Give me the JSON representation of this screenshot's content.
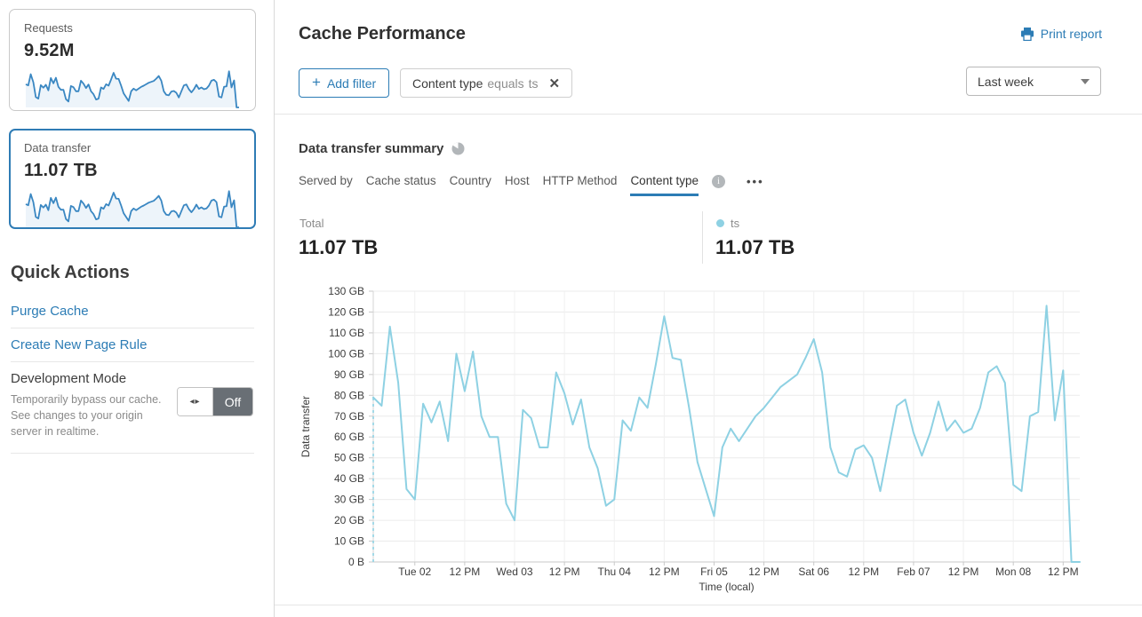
{
  "sidebar": {
    "cards": [
      {
        "label": "Requests",
        "value": "9.52M"
      },
      {
        "label": "Data transfer",
        "value": "11.07 TB"
      }
    ],
    "selected_card": "Data transfer",
    "quick_actions_title": "Quick Actions",
    "links": [
      "Purge Cache",
      "Create New Page Rule"
    ],
    "dev_mode": {
      "title": "Development Mode",
      "description": "Temporarily bypass our cache. See changes to your origin server in realtime.",
      "state": "Off",
      "toggle_icon": "left-right-arrows-icon"
    }
  },
  "header": {
    "title": "Cache Performance",
    "print_report": "Print report",
    "print_icon": "printer-icon",
    "add_filter": "Add filter",
    "filter_chip": {
      "field": "Content type",
      "operator": "equals",
      "value": "ts",
      "close_icon": "close-icon"
    },
    "time_range": "Last week"
  },
  "summary": {
    "title": "Data transfer summary",
    "title_icon": "pie-chart-icon",
    "tabs": [
      "Served by",
      "Cache status",
      "Country",
      "Host",
      "HTTP Method",
      "Content type"
    ],
    "active_tab": "Content type",
    "info_icon": "info-icon",
    "more_icon": "more-options-icon",
    "total_label": "Total",
    "total_value": "11.07 TB",
    "legend": {
      "name": "ts",
      "value": "11.07 TB"
    }
  },
  "chart_data": {
    "type": "line",
    "title": "Data transfer summary",
    "xlabel": "Time (local)",
    "ylabel": "Data transfer",
    "unit": "GB",
    "ylim": [
      0,
      130
    ],
    "grid": true,
    "legend_position": "top",
    "y_ticks": [
      "0 B",
      "10 GB",
      "20 GB",
      "30 GB",
      "40 GB",
      "50 GB",
      "60 GB",
      "70 GB",
      "80 GB",
      "90 GB",
      "100 GB",
      "110 GB",
      "120 GB",
      "130 GB"
    ],
    "x_ticks": [
      "Tue 02",
      "12 PM",
      "Wed 03",
      "12 PM",
      "Thu 04",
      "12 PM",
      "Fri 05",
      "12 PM",
      "Sat 06",
      "12 PM",
      "Feb 07",
      "12 PM",
      "Mon 08",
      "12 PM"
    ],
    "x_tick_indices": [
      5,
      11,
      17,
      23,
      29,
      35,
      41,
      47,
      53,
      59,
      65,
      71,
      77,
      83
    ],
    "leading_dashed_drop": true,
    "series": [
      {
        "name": "ts",
        "color": "#8ed1e3",
        "values": [
          79,
          75,
          113,
          86,
          35,
          30,
          76,
          67,
          77,
          58,
          100,
          82,
          101,
          70,
          60,
          60,
          28,
          20,
          73,
          69,
          55,
          55,
          91,
          81,
          66,
          78,
          55,
          45,
          27,
          30,
          68,
          63,
          79,
          74,
          95,
          118,
          98,
          97,
          74,
          48,
          35,
          22,
          55,
          64,
          58,
          64,
          70,
          74,
          79,
          84,
          87,
          90,
          98,
          107,
          91,
          55,
          43,
          41,
          54,
          56,
          50,
          34,
          55,
          75,
          78,
          62,
          51,
          62,
          77,
          63,
          68,
          62,
          64,
          74,
          91,
          94,
          86,
          37,
          34,
          70,
          72,
          123,
          68,
          92,
          0,
          0
        ]
      }
    ]
  },
  "colors": {
    "accent_blue": "#2c7cb5",
    "selected_card_border": "#2f7cb5",
    "chart_line": "#8ed1e3",
    "sparkline_stroke": "#3a87c2",
    "sparkline_fill": "#edf4fa",
    "grid_line": "#ebebeb",
    "axis_line": "#c9c9c9",
    "toggle_off_bg": "#696f75"
  }
}
